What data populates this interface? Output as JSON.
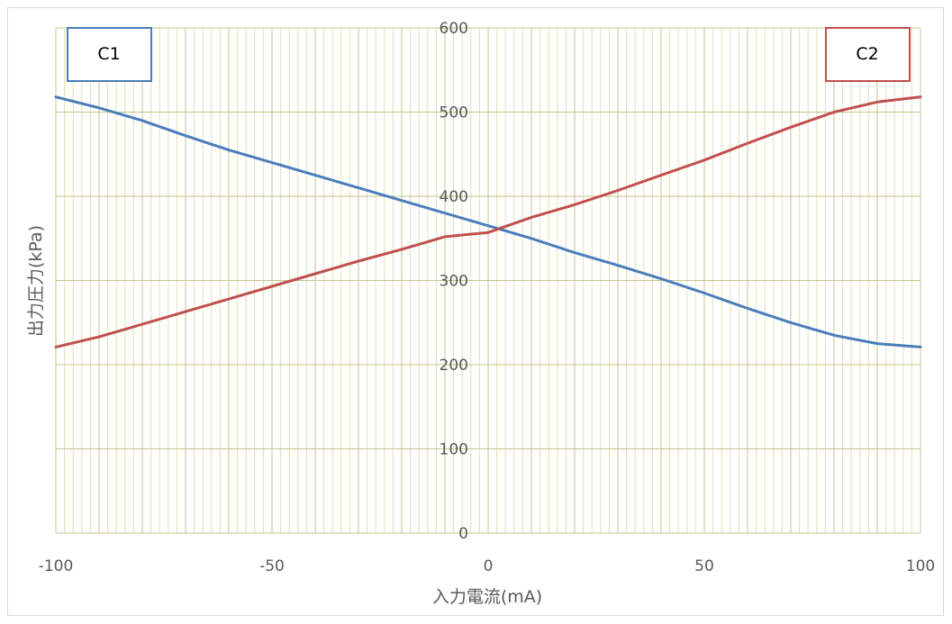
{
  "chart_data": {
    "type": "line",
    "title": "",
    "xlabel": "入力電流(mA)",
    "ylabel": "出力圧力(kPa)",
    "xlim": [
      -100,
      100
    ],
    "ylim": [
      0,
      600
    ],
    "xticks": [
      -100,
      -50,
      0,
      50,
      100
    ],
    "yticks": [
      0,
      100,
      200,
      300,
      400,
      500,
      600
    ],
    "grid": true,
    "minor_grid": true,
    "legend_placement": "top-left and top-right boxes",
    "series": [
      {
        "name": "C1",
        "color": "#4a7ebb",
        "x": [
          -100,
          -90,
          -80,
          -70,
          -60,
          -50,
          -40,
          -30,
          -20,
          -10,
          0,
          10,
          20,
          30,
          40,
          50,
          60,
          70,
          80,
          90,
          100
        ],
        "y": [
          518,
          505,
          490,
          472,
          455,
          440,
          425,
          410,
          395,
          380,
          365,
          350,
          333,
          318,
          302,
          285,
          267,
          250,
          235,
          225,
          221
        ]
      },
      {
        "name": "C2",
        "color": "#c0504d",
        "x": [
          -100,
          -90,
          -80,
          -70,
          -60,
          -50,
          -40,
          -30,
          -20,
          -10,
          0,
          10,
          20,
          30,
          40,
          50,
          60,
          70,
          80,
          90,
          100
        ],
        "y": [
          221,
          233,
          248,
          263,
          278,
          293,
          308,
          323,
          337,
          352,
          357,
          375,
          390,
          407,
          425,
          443,
          463,
          482,
          500,
          512,
          518
        ]
      }
    ]
  },
  "colors": {
    "grid_major": "#c4c48c",
    "grid_minor": "#e2e2b6",
    "tick_label": "#595959"
  }
}
